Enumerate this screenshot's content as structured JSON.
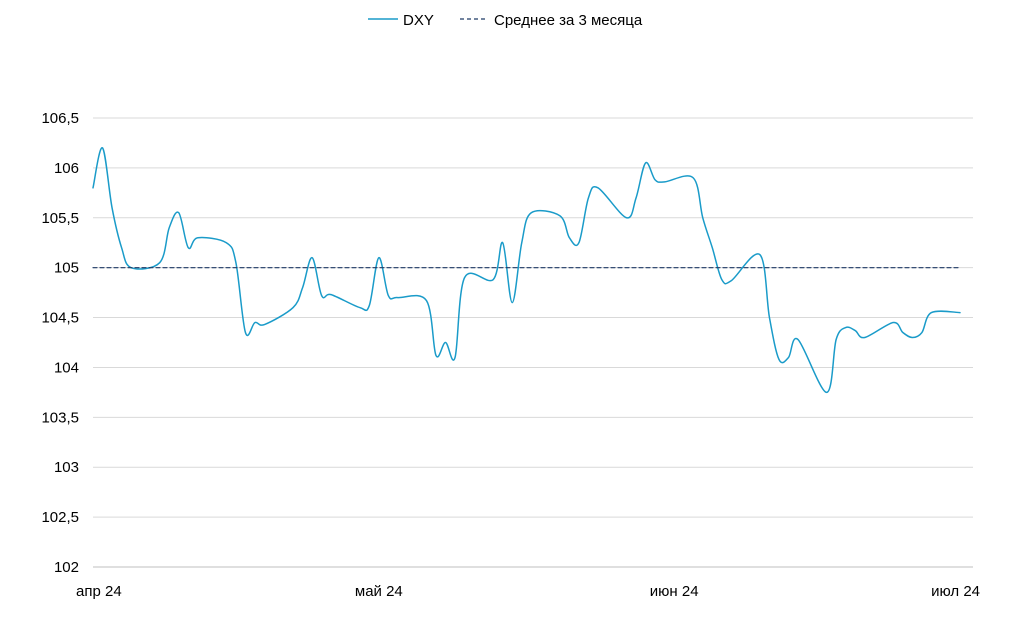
{
  "chart_data": {
    "type": "line",
    "title": "",
    "xlabel": "",
    "ylabel": "",
    "ylim": [
      102,
      106.5
    ],
    "yticks": [
      102,
      102.5,
      103,
      103.5,
      104,
      104.5,
      105,
      105.5,
      106,
      106.5
    ],
    "ytick_labels": [
      "102",
      "102,5",
      "103",
      "103,5",
      "104",
      "104,5",
      "105",
      "105,5",
      "106",
      "106,5"
    ],
    "xlim": [
      "2024-04-01",
      "2024-07-01"
    ],
    "xticks": [
      "2024-04-01",
      "2024-05-01",
      "2024-06-01",
      "2024-07-01"
    ],
    "xtick_labels": [
      "апр 24",
      "май 24",
      "июн 24",
      "июл 24"
    ],
    "grid": "horizontal",
    "legend_position": "top-center",
    "series": [
      {
        "name": "DXY",
        "color": "#1a9bc9",
        "style": "solid",
        "x": [
          "2024-04-01",
          "2024-04-02",
          "2024-04-03",
          "2024-04-04",
          "2024-04-05",
          "2024-04-08",
          "2024-04-09",
          "2024-04-10",
          "2024-04-11",
          "2024-04-12",
          "2024-04-15",
          "2024-04-16",
          "2024-04-17",
          "2024-04-18",
          "2024-04-19",
          "2024-04-22",
          "2024-04-23",
          "2024-04-24",
          "2024-04-25",
          "2024-04-26",
          "2024-04-29",
          "2024-04-30",
          "2024-05-01",
          "2024-05-02",
          "2024-05-03",
          "2024-05-06",
          "2024-05-07",
          "2024-05-08",
          "2024-05-09",
          "2024-05-10",
          "2024-05-13",
          "2024-05-14",
          "2024-05-15",
          "2024-05-16",
          "2024-05-17",
          "2024-05-20",
          "2024-05-21",
          "2024-05-22",
          "2024-05-23",
          "2024-05-24",
          "2024-05-27",
          "2024-05-28",
          "2024-05-29",
          "2024-05-30",
          "2024-05-31",
          "2024-06-03",
          "2024-06-04",
          "2024-06-05",
          "2024-06-06",
          "2024-06-07",
          "2024-06-10",
          "2024-06-11",
          "2024-06-12",
          "2024-06-13",
          "2024-06-14",
          "2024-06-17",
          "2024-06-18",
          "2024-06-19",
          "2024-06-20",
          "2024-06-21",
          "2024-06-24",
          "2024-06-25",
          "2024-06-26",
          "2024-06-27",
          "2024-06-28",
          "2024-07-01"
        ],
        "values": [
          105.8,
          106.2,
          105.6,
          105.2,
          105.0,
          105.05,
          105.4,
          105.55,
          105.2,
          105.3,
          105.25,
          105.05,
          104.35,
          104.45,
          104.43,
          104.6,
          104.8,
          105.1,
          104.72,
          104.73,
          104.6,
          104.62,
          105.1,
          104.72,
          104.7,
          104.67,
          104.12,
          104.25,
          104.1,
          104.9,
          104.88,
          105.25,
          104.65,
          105.25,
          105.55,
          105.52,
          105.3,
          105.25,
          105.7,
          105.8,
          105.5,
          105.7,
          106.05,
          105.88,
          105.86,
          105.9,
          105.5,
          105.2,
          104.88,
          104.87,
          105.13,
          104.5,
          104.08,
          104.1,
          104.28,
          103.75,
          104.28,
          104.4,
          104.37,
          104.3,
          104.45,
          104.35,
          104.3,
          104.35,
          104.55,
          104.55
        ]
      },
      {
        "name": "Среднее за 3 месяца",
        "color": "#1f3a66",
        "style": "dashed",
        "x": [
          "2024-04-01",
          "2024-07-01"
        ],
        "values": [
          105.0,
          105.0
        ]
      }
    ]
  }
}
